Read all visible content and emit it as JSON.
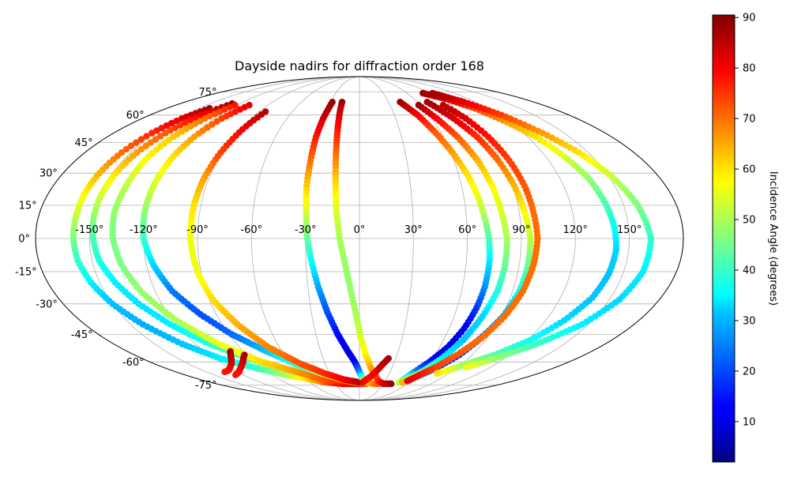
{
  "chart_data": {
    "type": "scatter",
    "projection": "mollweide",
    "title": "Dayside nadirs for diffraction order 168",
    "grid": true,
    "x_ticks": [
      "-150°",
      "-120°",
      "-90°",
      "-60°",
      "-30°",
      "0°",
      "30°",
      "60°",
      "90°",
      "120°",
      "150°"
    ],
    "x_tick_values": [
      -150,
      -120,
      -90,
      -60,
      -30,
      0,
      30,
      60,
      90,
      120,
      150
    ],
    "y_ticks": [
      "-75°",
      "-60°",
      "-45°",
      "-30°",
      "-15°",
      "0°",
      "15°",
      "30°",
      "45°",
      "60°",
      "75°"
    ],
    "y_tick_values": [
      -75,
      -60,
      -45,
      -30,
      -15,
      0,
      15,
      30,
      45,
      60,
      75
    ],
    "xlim": [
      -180,
      180
    ],
    "ylim": [
      -90,
      90
    ],
    "colorbar": {
      "label": "Incidence Angle (degrees)",
      "colormap": "jet",
      "min": 2,
      "max": 90.5,
      "ticks": [
        "10",
        "20",
        "30",
        "40",
        "50",
        "60",
        "70",
        "80",
        "90"
      ],
      "tick_values": [
        10,
        20,
        30,
        40,
        50,
        60,
        70,
        80,
        90
      ],
      "placement": "right"
    },
    "series": [
      {
        "points": [
          [
            -140,
            64,
            88
          ],
          [
            -147,
            58,
            82
          ],
          [
            -152,
            50,
            76
          ],
          [
            -156,
            40,
            70
          ],
          [
            -158,
            30,
            64
          ],
          [
            -159,
            20,
            58
          ],
          [
            -159,
            10,
            52
          ],
          [
            -159,
            0,
            46
          ],
          [
            -158,
            -10,
            40
          ],
          [
            -155,
            -20,
            34
          ],
          [
            -150,
            -30,
            30
          ],
          [
            -142,
            -40,
            28
          ],
          [
            -130,
            -50,
            30
          ],
          [
            -115,
            -58,
            34
          ],
          [
            -95,
            -64,
            40
          ],
          [
            -75,
            -68,
            50
          ],
          [
            -55,
            -71,
            62
          ],
          [
            -40,
            -73,
            72
          ],
          [
            -20,
            -74,
            82
          ],
          [
            0,
            -74,
            88
          ]
        ]
      },
      {
        "points": [
          [
            -128,
            67,
            88
          ],
          [
            -136,
            60,
            80
          ],
          [
            -142,
            50,
            72
          ],
          [
            -146,
            40,
            66
          ],
          [
            -148,
            30,
            60
          ],
          [
            -149,
            20,
            54
          ],
          [
            -149,
            10,
            48
          ],
          [
            -148,
            0,
            42
          ],
          [
            -146,
            -10,
            38
          ],
          [
            -141,
            -20,
            34
          ],
          [
            -134,
            -30,
            33
          ],
          [
            -124,
            -40,
            34
          ],
          [
            -110,
            -50,
            38
          ],
          [
            -92,
            -58,
            44
          ],
          [
            -72,
            -64,
            52
          ],
          [
            -50,
            -68,
            60
          ],
          [
            -30,
            -71,
            68
          ],
          [
            -12,
            -73,
            74
          ],
          [
            5,
            -74,
            80
          ]
        ]
      },
      {
        "points": [
          [
            -122,
            66,
            78
          ],
          [
            -128,
            58,
            70
          ],
          [
            -133,
            48,
            62
          ],
          [
            -136,
            38,
            58
          ],
          [
            -137,
            25,
            52
          ],
          [
            -138,
            12,
            48
          ],
          [
            -137,
            0,
            46
          ],
          [
            -134,
            -12,
            46
          ],
          [
            -128,
            -25,
            48
          ],
          [
            -118,
            -38,
            50
          ],
          [
            -103,
            -50,
            55
          ],
          [
            -84,
            -60,
            60
          ],
          [
            -62,
            -66,
            66
          ],
          [
            -40,
            -71,
            72
          ],
          [
            -15,
            -73,
            78
          ],
          [
            2,
            -74,
            82
          ]
        ]
      },
      {
        "points": [
          [
            -108,
            66,
            82
          ],
          [
            -114,
            58,
            74
          ],
          [
            -118,
            48,
            66
          ],
          [
            -120,
            38,
            60
          ],
          [
            -121,
            25,
            54
          ],
          [
            -121,
            12,
            48
          ],
          [
            -120,
            0,
            40
          ],
          [
            -116,
            -12,
            32
          ],
          [
            -110,
            -24,
            24
          ],
          [
            -100,
            -35,
            20
          ],
          [
            -88,
            -45,
            22
          ],
          [
            -72,
            -54,
            30
          ],
          [
            -55,
            -62,
            40
          ],
          [
            -38,
            -67,
            50
          ],
          [
            -20,
            -71,
            60
          ],
          [
            -5,
            -73,
            66
          ],
          [
            8,
            -74,
            72
          ]
        ]
      },
      {
        "points": [
          [
            -84,
            62,
            86
          ],
          [
            -88,
            52,
            80
          ],
          [
            -91,
            40,
            74
          ],
          [
            -93,
            28,
            66
          ],
          [
            -94,
            15,
            60
          ],
          [
            -94,
            0,
            56
          ],
          [
            -92,
            -15,
            56
          ],
          [
            -88,
            -28,
            60
          ],
          [
            -80,
            -40,
            64
          ],
          [
            -68,
            -52,
            68
          ],
          [
            -52,
            -61,
            72
          ],
          [
            -35,
            -67,
            76
          ],
          [
            -18,
            -71,
            80
          ],
          [
            0,
            -73,
            86
          ]
        ]
      },
      {
        "points": [
          [
            -28,
            68,
            88
          ],
          [
            -30,
            58,
            84
          ],
          [
            -31,
            48,
            78
          ],
          [
            -31,
            36,
            70
          ],
          [
            -31,
            24,
            62
          ],
          [
            -30,
            12,
            54
          ],
          [
            -29,
            0,
            44
          ],
          [
            -27,
            -10,
            36
          ],
          [
            -24,
            -22,
            28
          ],
          [
            -20,
            -34,
            20
          ],
          [
            -15,
            -45,
            14
          ],
          [
            -9,
            -54,
            10
          ],
          [
            -4,
            -60,
            12
          ],
          [
            0,
            -66,
            24
          ],
          [
            3,
            -70,
            40
          ],
          [
            6,
            -72,
            52
          ],
          [
            10,
            -73,
            60
          ],
          [
            16,
            -74,
            66
          ],
          [
            24,
            -74,
            72
          ]
        ]
      },
      {
        "points": [
          [
            -18,
            68,
            88
          ],
          [
            -17,
            58,
            82
          ],
          [
            -16,
            48,
            76
          ],
          [
            -15,
            36,
            68
          ],
          [
            -14,
            24,
            60
          ],
          [
            -13,
            12,
            54
          ],
          [
            -11,
            0,
            50
          ],
          [
            -8,
            -12,
            48
          ],
          [
            -5,
            -24,
            48
          ],
          [
            -2,
            -36,
            50
          ],
          [
            1,
            -47,
            54
          ],
          [
            5,
            -56,
            58
          ],
          [
            10,
            -63,
            64
          ],
          [
            16,
            -68,
            70
          ],
          [
            22,
            -72,
            76
          ],
          [
            30,
            -74,
            82
          ],
          [
            40,
            -74,
            88
          ]
        ]
      },
      {
        "points": [
          [
            24,
            -58,
            88
          ],
          [
            20,
            -62,
            85
          ],
          [
            16,
            -66,
            82
          ],
          [
            12,
            -69,
            80
          ],
          [
            8,
            -71,
            78
          ],
          [
            4,
            -73,
            80
          ]
        ]
      },
      {
        "points": [
          [
            42,
            68,
            88
          ],
          [
            50,
            60,
            80
          ],
          [
            56,
            50,
            72
          ],
          [
            61,
            40,
            66
          ],
          [
            65,
            30,
            60
          ],
          [
            68,
            20,
            56
          ],
          [
            70,
            10,
            50
          ],
          [
            72,
            0,
            42
          ],
          [
            73,
            -10,
            34
          ],
          [
            73,
            -22,
            26
          ],
          [
            72,
            -32,
            18
          ],
          [
            70,
            -42,
            12
          ],
          [
            66,
            -52,
            10
          ],
          [
            60,
            -60,
            14
          ],
          [
            54,
            -66,
            24
          ],
          [
            50,
            -70,
            40
          ],
          [
            48,
            -73,
            52
          ]
        ]
      },
      {
        "points": [
          [
            58,
            66,
            88
          ],
          [
            64,
            58,
            80
          ],
          [
            70,
            48,
            72
          ],
          [
            75,
            36,
            64
          ],
          [
            78,
            24,
            58
          ],
          [
            80,
            12,
            54
          ],
          [
            82,
            0,
            50
          ],
          [
            82,
            -12,
            44
          ],
          [
            81,
            -24,
            38
          ],
          [
            78,
            -36,
            32
          ],
          [
            74,
            -48,
            30
          ],
          [
            68,
            -58,
            34
          ],
          [
            62,
            -65,
            42
          ],
          [
            56,
            -70,
            54
          ],
          [
            52,
            -73,
            64
          ]
        ]
      },
      {
        "points": [
          [
            70,
            68,
            88
          ],
          [
            78,
            58,
            82
          ],
          [
            84,
            48,
            76
          ],
          [
            88,
            36,
            70
          ],
          [
            91,
            24,
            64
          ],
          [
            93,
            12,
            58
          ],
          [
            95,
            0,
            52
          ],
          [
            95,
            -12,
            44
          ],
          [
            94,
            -24,
            36
          ],
          [
            91,
            -36,
            28
          ],
          [
            86,
            -46,
            22
          ],
          [
            80,
            -56,
            18
          ],
          [
            72,
            -63,
            20
          ],
          [
            64,
            -68,
            30
          ],
          [
            58,
            -72,
            44
          ]
        ]
      },
      {
        "points": [
          [
            82,
            66,
            86
          ],
          [
            88,
            58,
            82
          ],
          [
            92,
            48,
            78
          ],
          [
            95,
            36,
            74
          ],
          [
            97,
            24,
            72
          ],
          [
            98,
            12,
            70
          ],
          [
            99,
            0,
            70
          ],
          [
            98,
            -12,
            70
          ],
          [
            96,
            -24,
            70
          ],
          [
            92,
            -36,
            70
          ],
          [
            86,
            -47,
            70
          ],
          [
            78,
            -56,
            72
          ],
          [
            70,
            -63,
            74
          ],
          [
            62,
            -68,
            78
          ],
          [
            56,
            -72,
            82
          ]
        ]
      },
      {
        "points": [
          [
            80,
            74,
            88
          ],
          [
            95,
            70,
            82
          ],
          [
            108,
            64,
            74
          ],
          [
            118,
            56,
            66
          ],
          [
            126,
            48,
            60
          ],
          [
            132,
            38,
            54
          ],
          [
            137,
            28,
            48
          ],
          [
            140,
            16,
            42
          ],
          [
            142,
            5,
            36
          ],
          [
            143,
            -5,
            32
          ],
          [
            142,
            -16,
            30
          ],
          [
            139,
            -27,
            30
          ],
          [
            132,
            -38,
            32
          ],
          [
            122,
            -48,
            36
          ],
          [
            108,
            -56,
            42
          ],
          [
            90,
            -63,
            50
          ],
          [
            78,
            -67,
            60
          ]
        ]
      },
      {
        "points": [
          [
            92,
            74,
            88
          ],
          [
            108,
            68,
            82
          ],
          [
            122,
            60,
            74
          ],
          [
            134,
            50,
            66
          ],
          [
            144,
            40,
            60
          ],
          [
            152,
            28,
            52
          ],
          [
            158,
            15,
            46
          ],
          [
            162,
            0,
            40
          ],
          [
            161,
            -15,
            34
          ],
          [
            156,
            -28,
            32
          ],
          [
            146,
            -40,
            34
          ],
          [
            130,
            -50,
            40
          ],
          [
            112,
            -58,
            48
          ],
          [
            98,
            -63,
            56
          ]
        ]
      },
      {
        "points": [
          [
            -100,
            -54,
            88
          ],
          [
            -106,
            -58,
            86
          ],
          [
            -112,
            -61,
            84
          ],
          [
            -118,
            -63,
            82
          ],
          [
            -125,
            -65,
            80
          ],
          [
            -132,
            -66,
            78
          ]
        ]
      },
      {
        "points": [
          [
            -92,
            -56,
            88
          ],
          [
            -100,
            -60,
            85
          ],
          [
            -108,
            -63,
            82
          ],
          [
            -118,
            -66,
            80
          ],
          [
            -128,
            -68,
            78
          ]
        ]
      }
    ]
  }
}
